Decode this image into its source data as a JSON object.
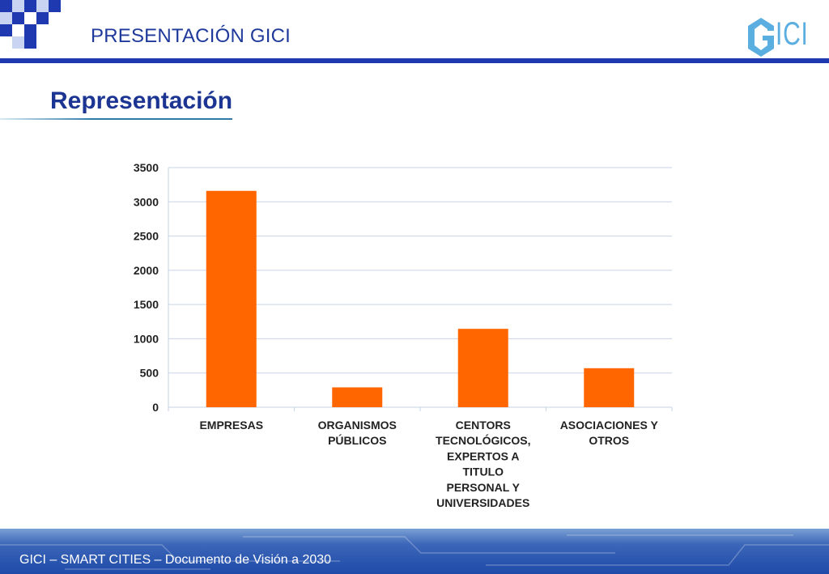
{
  "header": {
    "title": "PRESENTACIÓN GICI",
    "logo_text": "ICI"
  },
  "slide": {
    "title": "Representación"
  },
  "footer": {
    "text": "GICI – SMART CITIES – Documento de Visión a 2030"
  },
  "colors": {
    "accent_blue": "#1f3ab0",
    "bar_orange": "#ff6600",
    "title_blue": "#1c3592"
  },
  "chart_data": {
    "type": "bar",
    "categories": [
      [
        "EMPRESAS"
      ],
      [
        "ORGANISMOS",
        "PÚBLICOS"
      ],
      [
        "CENTORS",
        "TECNOLÓGICOS,",
        "EXPERTOS A",
        "TITULO",
        "PERSONAL Y",
        "UNIVERSIDADES"
      ],
      [
        "ASOCIACIONES Y",
        "OTROS"
      ]
    ],
    "values": [
      3160,
      290,
      1145,
      570
    ],
    "yticks": [
      0,
      500,
      1000,
      1500,
      2000,
      2500,
      3000,
      3500
    ],
    "ylim": [
      0,
      3500
    ],
    "grid": true,
    "title": "",
    "xlabel": "",
    "ylabel": ""
  }
}
